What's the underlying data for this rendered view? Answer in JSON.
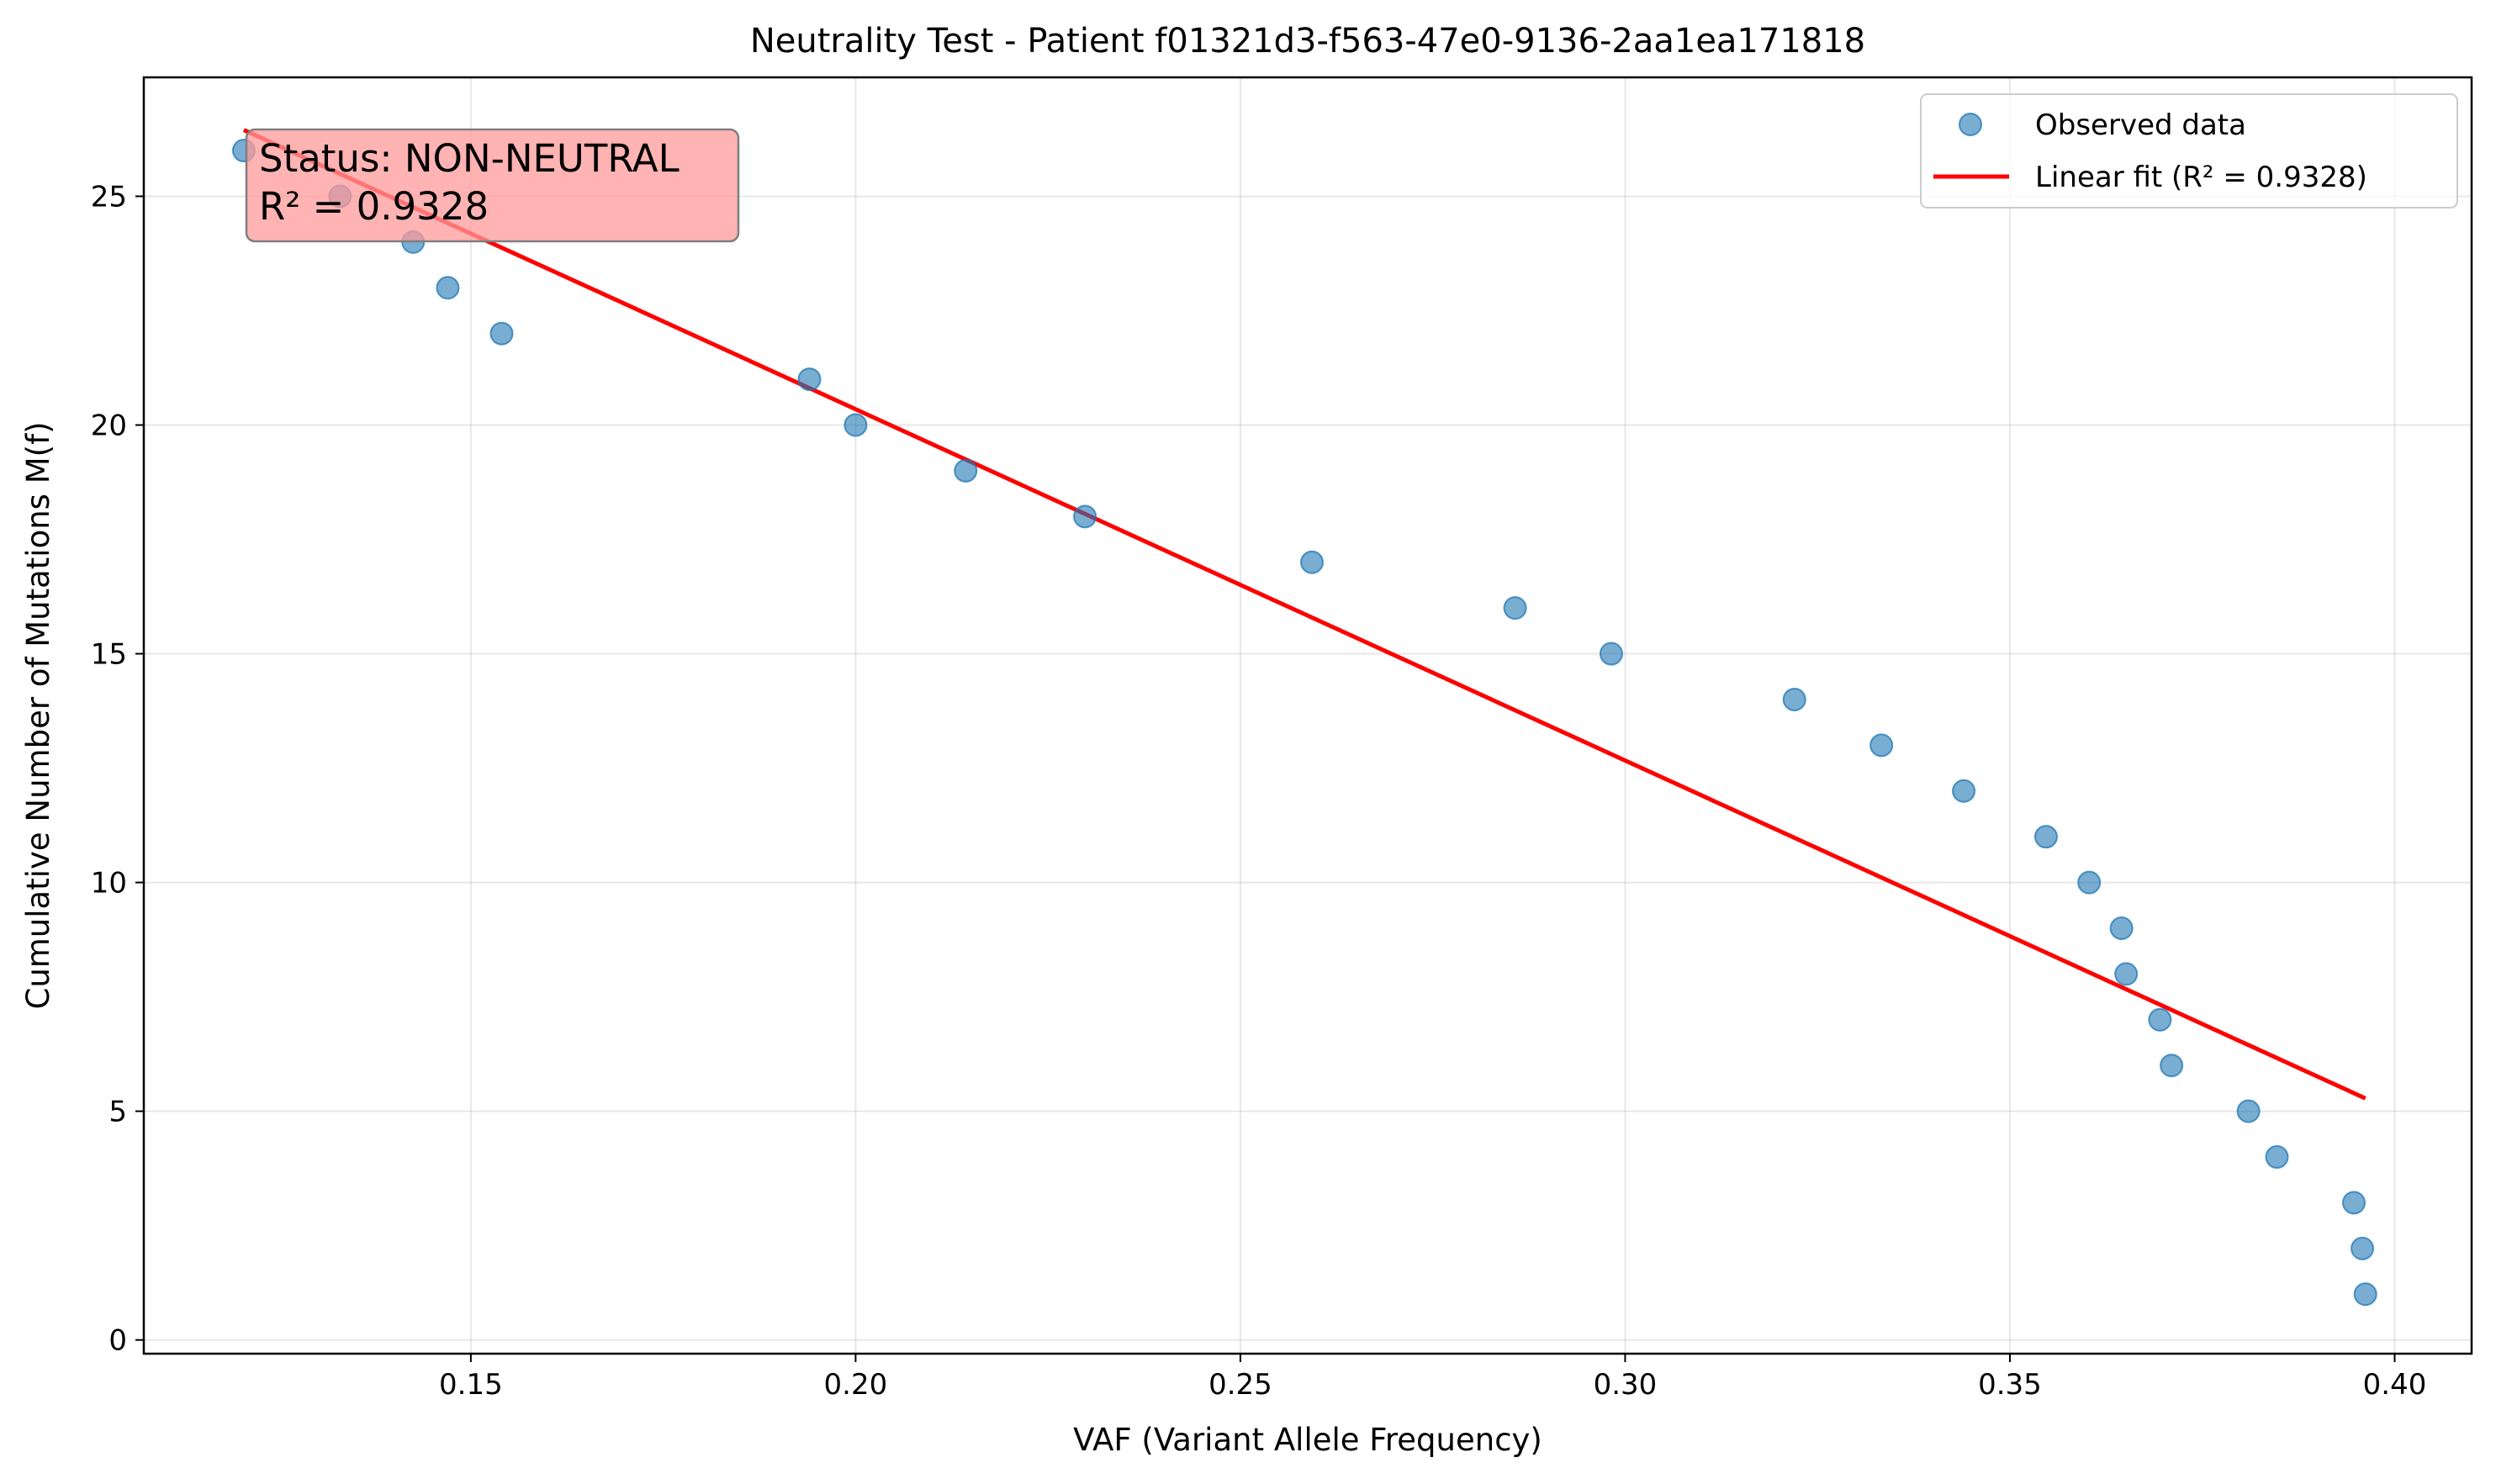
{
  "chart_data": {
    "type": "scatter",
    "title": "Neutrality Test - Patient f01321d3-f563-47e0-9136-2aa1ea171818",
    "xlabel": "VAF (Variant Allele Frequency)",
    "ylabel": "Cumulative Number of Mutations M(f)",
    "xlim": [
      0.1075,
      0.41
    ],
    "ylim": [
      -0.3,
      27.6
    ],
    "xticks": [
      0.15,
      0.2,
      0.25,
      0.3,
      0.35,
      0.4
    ],
    "xtick_labels": [
      "0.15",
      "0.20",
      "0.25",
      "0.30",
      "0.35",
      "0.40"
    ],
    "yticks": [
      0,
      5,
      10,
      15,
      20,
      25
    ],
    "ytick_labels": [
      "0",
      "5",
      "10",
      "15",
      "20",
      "25"
    ],
    "grid": true,
    "legend_position": "top-right",
    "series": [
      {
        "name": "Observed data",
        "kind": "scatter",
        "color": "#1f77b4",
        "x": [
          0.1205,
          0.133,
          0.1425,
          0.147,
          0.154,
          0.194,
          0.2,
          0.2143,
          0.2298,
          0.2593,
          0.2857,
          0.2982,
          0.322,
          0.3333,
          0.344,
          0.3547,
          0.3603,
          0.3645,
          0.3651,
          0.3695,
          0.371,
          0.381,
          0.3847,
          0.3947,
          0.3958,
          0.3962
        ],
        "y": [
          26,
          25,
          24,
          23,
          22,
          21,
          20,
          19,
          18,
          17,
          16,
          15,
          14,
          13,
          12,
          11,
          10,
          9,
          8,
          7,
          6,
          5,
          4,
          3,
          2,
          1
        ]
      },
      {
        "name": "Linear fit (R² = 0.9328)",
        "kind": "line",
        "color": "#ff0000",
        "x": [
          0.1205,
          0.3962
        ],
        "y": [
          26.45,
          5.28
        ]
      }
    ],
    "annotation": {
      "lines": [
        "Status: NON-NEUTRAL",
        "R² = 0.9328"
      ],
      "background": "#ff9999",
      "position": "top-left"
    }
  }
}
